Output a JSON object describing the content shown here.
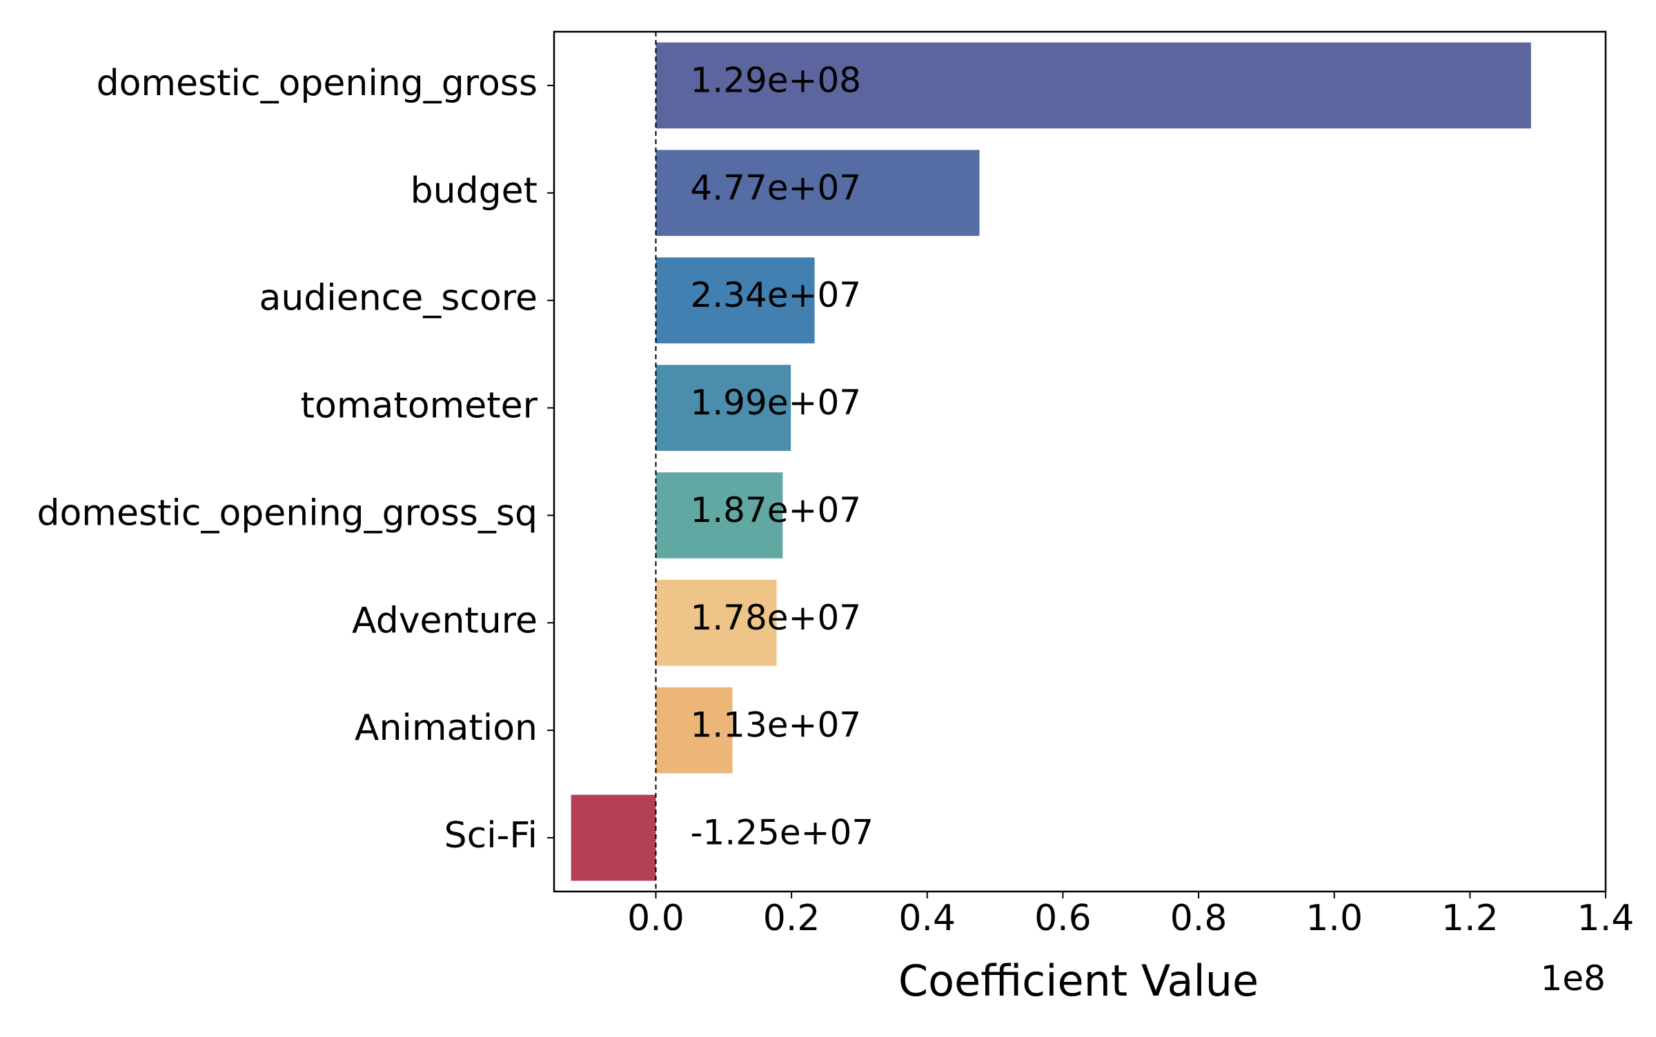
{
  "chart_data": {
    "type": "bar",
    "orientation": "horizontal",
    "categories": [
      "domestic_opening_gross",
      "budget",
      "audience_score",
      "tomatometer",
      "domestic_opening_gross_sq",
      "Adventure",
      "Animation",
      "Sci-Fi"
    ],
    "values": [
      129000000,
      47700000,
      23400000,
      19900000,
      18700000,
      17800000,
      11300000,
      -12500000
    ],
    "value_labels": [
      "1.29e+08",
      "4.77e+07",
      "2.34e+07",
      "1.99e+07",
      "1.87e+07",
      "1.78e+07",
      "1.13e+07",
      "-1.25e+07"
    ],
    "colors": [
      "#5d659f",
      "#556da4",
      "#4380b2",
      "#4a8dad",
      "#62a8a2",
      "#efc488",
      "#ecb678",
      "#b34055"
    ],
    "xlabel": "Coefficient Value",
    "ylabel": "",
    "title": "",
    "offset_text": "1e8",
    "x_ticks": [
      0.0,
      0.2,
      0.4,
      0.6,
      0.8,
      1.0,
      1.2,
      1.4
    ],
    "x_tick_labels": [
      "0.0",
      "0.2",
      "0.4",
      "0.6",
      "0.8",
      "1.0",
      "1.2",
      "1.4"
    ],
    "x_tick_scale": 100000000,
    "xlim": [
      -15000000,
      140000000
    ],
    "reference_line": {
      "x": 0,
      "style": "dashed"
    },
    "grid": false,
    "legend": "none"
  }
}
